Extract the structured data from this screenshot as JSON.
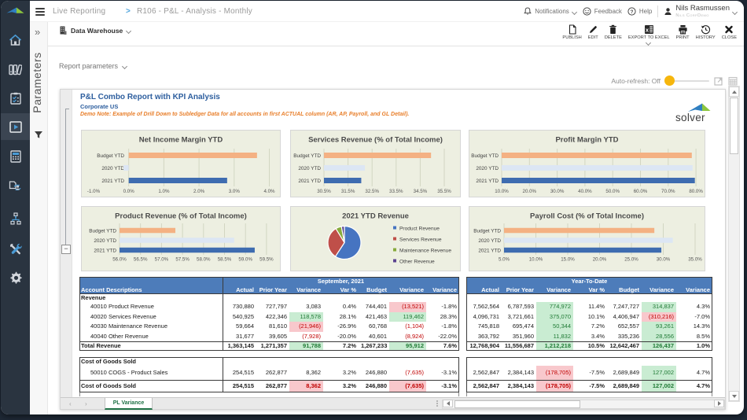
{
  "topbar": {
    "breadcrumb": [
      "Live Reporting",
      "R106 - P&L - Analysis - Monthly"
    ],
    "separator": ">",
    "notifications_label": "Notifications",
    "feedback_label": "Feedback",
    "help_label": "Help",
    "user_name": "Nils Rasmussen",
    "user_org": "Nils CorpDemo"
  },
  "toolbar": {
    "source_label": "Data Warehouse",
    "actions": [
      {
        "id": "publish",
        "label": "PUBLISH"
      },
      {
        "id": "edit",
        "label": "EDIT"
      },
      {
        "id": "delete",
        "label": "DELETE"
      },
      {
        "id": "export",
        "label": "EXPORT TO EXCEL"
      },
      {
        "id": "print",
        "label": "PRINT"
      },
      {
        "id": "history",
        "label": "HISTORY"
      },
      {
        "id": "close",
        "label": "CLOSE"
      }
    ]
  },
  "sidebar": {
    "items": [
      "home",
      "archive",
      "tasks",
      "reports",
      "budgeting",
      "publisher",
      "integrations",
      "tools",
      "settings"
    ],
    "active_item": "reports"
  },
  "parameters_rail": {
    "label": "Parameters",
    "expand_glyph": "»"
  },
  "report_controls": {
    "label": "Report parameters"
  },
  "auto_refresh": {
    "label": "Auto-refresh: Off",
    "state": "Off",
    "knob_color": "#f6b60d"
  },
  "report": {
    "title": "P&L Combo Report with KPI Analysis",
    "entity": "Corporate US",
    "note": "Demo Note: Example of Drill Down to Subledger Data for all accounts in first ACTUAL column (AR, AP, Payroll, and GL Detail).",
    "logo_text": "solver",
    "outline_collapse_glyph": "−"
  },
  "chart_colors": {
    "budget": "#f4b183",
    "y2020": "#dce6f4",
    "y2021": "#3e6cb0",
    "panel_bg": "#edefe1",
    "pie": [
      "#4674c1",
      "#bf4f49",
      "#87aa3c",
      "#5b4390"
    ]
  },
  "chart_data": [
    {
      "type": "bar",
      "title": "Net Income Margin YTD",
      "categories": [
        "Budget YTD",
        "2020 YTD",
        "2021 YTD"
      ],
      "values": [
        3.65,
        -0.15,
        2.8
      ],
      "unit": "%",
      "xlim": [
        -1.0,
        4.25
      ],
      "ticks": [
        -1.0,
        0.0,
        1.0,
        2.0,
        3.0,
        4.0
      ],
      "tick_decimals": 1,
      "bar_origin": 0.0
    },
    {
      "type": "bar",
      "title": "Services Revenue (% of Total Income)",
      "categories": [
        "Budget YTD",
        "2020 YTD",
        "2021 YTD"
      ],
      "values": [
        34.95,
        32.2,
        32.05
      ],
      "unit": "%",
      "xlim": [
        30.5,
        35.95
      ],
      "ticks": [
        30.5,
        31.5,
        32.5,
        33.5,
        34.5,
        35.5
      ],
      "tick_decimals": 1,
      "bar_origin": 30.5
    },
    {
      "type": "bar",
      "title": "Profit Margin YTD",
      "categories": [
        "Budget YTD",
        "2020 YTD",
        "2021 YTD"
      ],
      "values": [
        78.5,
        78.8,
        79.6
      ],
      "unit": "%",
      "xlim": [
        10.0,
        81.1
      ],
      "ticks": [
        10.0,
        20.0,
        30.0,
        40.0,
        50.0,
        60.0,
        70.0,
        80.0
      ],
      "tick_decimals": 1,
      "bar_origin": 10.0
    },
    {
      "type": "bar",
      "title": "Product Revenue (% of Total Income)",
      "categories": [
        "Budget YTD",
        "2020 YTD",
        "2021 YTD"
      ],
      "values": [
        57.33,
        58.73,
        59.22
      ],
      "unit": "%",
      "xlim": [
        56.0,
        59.69
      ],
      "ticks": [
        56.0,
        56.5,
        57.0,
        57.5,
        58.0,
        58.5,
        59.0,
        59.5
      ],
      "tick_decimals": 1,
      "bar_origin": 56.0
    },
    {
      "type": "pie",
      "title": "2021 YTD Revenue",
      "labels": [
        "Product Revenue",
        "Services Revenue",
        "Maintenance Revenue",
        "Other Revenue"
      ],
      "values": [
        59.2,
        32.1,
        5.8,
        2.9
      ],
      "unit": "%"
    },
    {
      "type": "bar",
      "title": "Payroll Cost (% of Total Income)",
      "categories": [
        "Budget YTD",
        "2020 YTD",
        "2021 YTD"
      ],
      "values": [
        28.6,
        31.5,
        29.7
      ],
      "unit": "%",
      "xlim": [
        5.0,
        35.6
      ],
      "ticks": [
        5.0,
        10.0,
        15.0,
        20.0,
        25.0,
        30.0,
        35.0
      ],
      "tick_decimals": 1,
      "bar_origin": 5.0
    }
  ],
  "table": {
    "label_header": "Account Descriptions",
    "left_group_header": "September, 2021",
    "right_group_header": "Year-To-Date",
    "columns": [
      "Actual",
      "Prior Year",
      "Variance",
      "Var %",
      "Budget",
      "Variance",
      "Variance"
    ],
    "rows": [
      {
        "kind": "section",
        "label": "Revenue",
        "left": [
          "",
          "",
          "",
          "",
          "",
          "",
          ""
        ],
        "right": [
          "",
          "",
          "",
          "",
          "",
          "",
          ""
        ]
      },
      {
        "kind": "detail",
        "label": "40010 Product Revenue",
        "left": [
          "730,880",
          "727,797",
          "3,083",
          "0.4%",
          "744,401",
          {
            "v": "(13,521)",
            "s": "r"
          },
          "-1.8%"
        ],
        "right": [
          "7,562,564",
          "6,787,593",
          {
            "v": "774,972",
            "s": "g"
          },
          "11.4%",
          "7,247,727",
          {
            "v": "314,837",
            "s": "g"
          },
          "4.3%"
        ]
      },
      {
        "kind": "detail",
        "label": "40020 Services Revenue",
        "left": [
          "540,925",
          "422,346",
          {
            "v": "118,578",
            "s": "g"
          },
          "28.1%",
          "421,463",
          {
            "v": "119,462",
            "s": "g"
          },
          "28.3%"
        ],
        "right": [
          "4,096,731",
          "3,721,661",
          {
            "v": "375,070",
            "s": "g"
          },
          "10.1%",
          "4,406,947",
          {
            "v": "(310,216)",
            "s": "r"
          },
          "-7.0%"
        ]
      },
      {
        "kind": "detail",
        "label": "40030 Maintenance Revenue",
        "left": [
          "59,664",
          "81,610",
          {
            "v": "(21,946)",
            "s": "r"
          },
          "-26.9%",
          "60,768",
          {
            "v": "(1,104)",
            "s": "n"
          },
          "-1.8%"
        ],
        "right": [
          "745,818",
          "695,474",
          {
            "v": "50,344",
            "s": "g"
          },
          "7.2%",
          "652,557",
          {
            "v": "93,261",
            "s": "g"
          },
          "14.3%"
        ]
      },
      {
        "kind": "detail",
        "label": "40040 Other Revenue",
        "left": [
          "31,677",
          "39,605",
          {
            "v": "(7,928)",
            "s": "n"
          },
          "-20.0%",
          "40,601",
          {
            "v": "(8,924)",
            "s": "n"
          },
          "-22.0%"
        ],
        "right": [
          "363,792",
          "351,960",
          {
            "v": "11,832",
            "s": "g"
          },
          "3.4%",
          "335,236",
          {
            "v": "28,556",
            "s": "g"
          },
          "8.5%"
        ]
      },
      {
        "kind": "total",
        "label": "Total Revenue",
        "left": [
          "1,363,145",
          "1,271,357",
          {
            "v": "91,788",
            "s": "g"
          },
          "7.2%",
          "1,267,233",
          {
            "v": "95,912",
            "s": "g"
          },
          "7.6%"
        ],
        "right": [
          "12,768,904",
          "11,556,687",
          {
            "v": "1,212,218",
            "s": "g"
          },
          "10.5%",
          "12,642,467",
          {
            "v": "126,437",
            "s": "g"
          },
          "1.0%"
        ]
      },
      {
        "kind": "gap",
        "label": "",
        "left": [
          "",
          "",
          "",
          "",
          "",
          "",
          ""
        ],
        "right": [
          "",
          "",
          "",
          "",
          "",
          "",
          ""
        ]
      },
      {
        "kind": "section",
        "label": "Cost of Goods Sold",
        "left": [
          "",
          "",
          "",
          "",
          "",
          "",
          ""
        ],
        "right": [
          "",
          "",
          "",
          "",
          "",
          "",
          ""
        ]
      },
      {
        "kind": "detail",
        "label": "50010 COGS - Product Sales",
        "left": [
          "254,515",
          "262,877",
          "8,362",
          "3.2%",
          "246,880",
          {
            "v": "(7,635)",
            "s": "n"
          },
          "-3.1%"
        ],
        "right": [
          "2,562,847",
          "2,384,143",
          {
            "v": "(178,705)",
            "s": "r"
          },
          "-7.5%",
          "2,689,849",
          {
            "v": "127,002",
            "s": "g"
          },
          "4.7%"
        ]
      },
      {
        "kind": "total",
        "label": "Cost of Goods Sold",
        "left": [
          "254,515",
          "262,877",
          {
            "v": "8,362",
            "s": "r"
          },
          "3.2%",
          "246,880",
          {
            "v": "(7,635)",
            "s": "r"
          },
          "-3.1%"
        ],
        "right": [
          "2,562,847",
          "2,384,143",
          {
            "v": "(178,705)",
            "s": "r"
          },
          "-7.5%",
          "2,689,849",
          {
            "v": "127,002",
            "s": "g"
          },
          "4.7%"
        ]
      }
    ]
  },
  "sheet_tabs": {
    "active": "PL Variance"
  }
}
